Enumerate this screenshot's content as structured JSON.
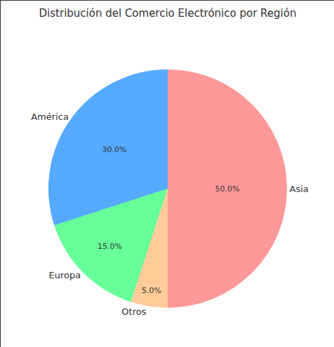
{
  "chart_data": {
    "type": "pie",
    "title": "Distribución del Comercio Electrónico por Región",
    "categories": [
      "Asia",
      "América",
      "Europa",
      "Otros"
    ],
    "values": [
      50,
      30,
      15,
      5
    ],
    "value_labels": [
      "50.0%",
      "30.0%",
      "15.0%",
      "5.0%"
    ],
    "colors": [
      "#ff9999",
      "#55aaff",
      "#66ff99",
      "#ffcc99"
    ],
    "data_labels": true
  }
}
